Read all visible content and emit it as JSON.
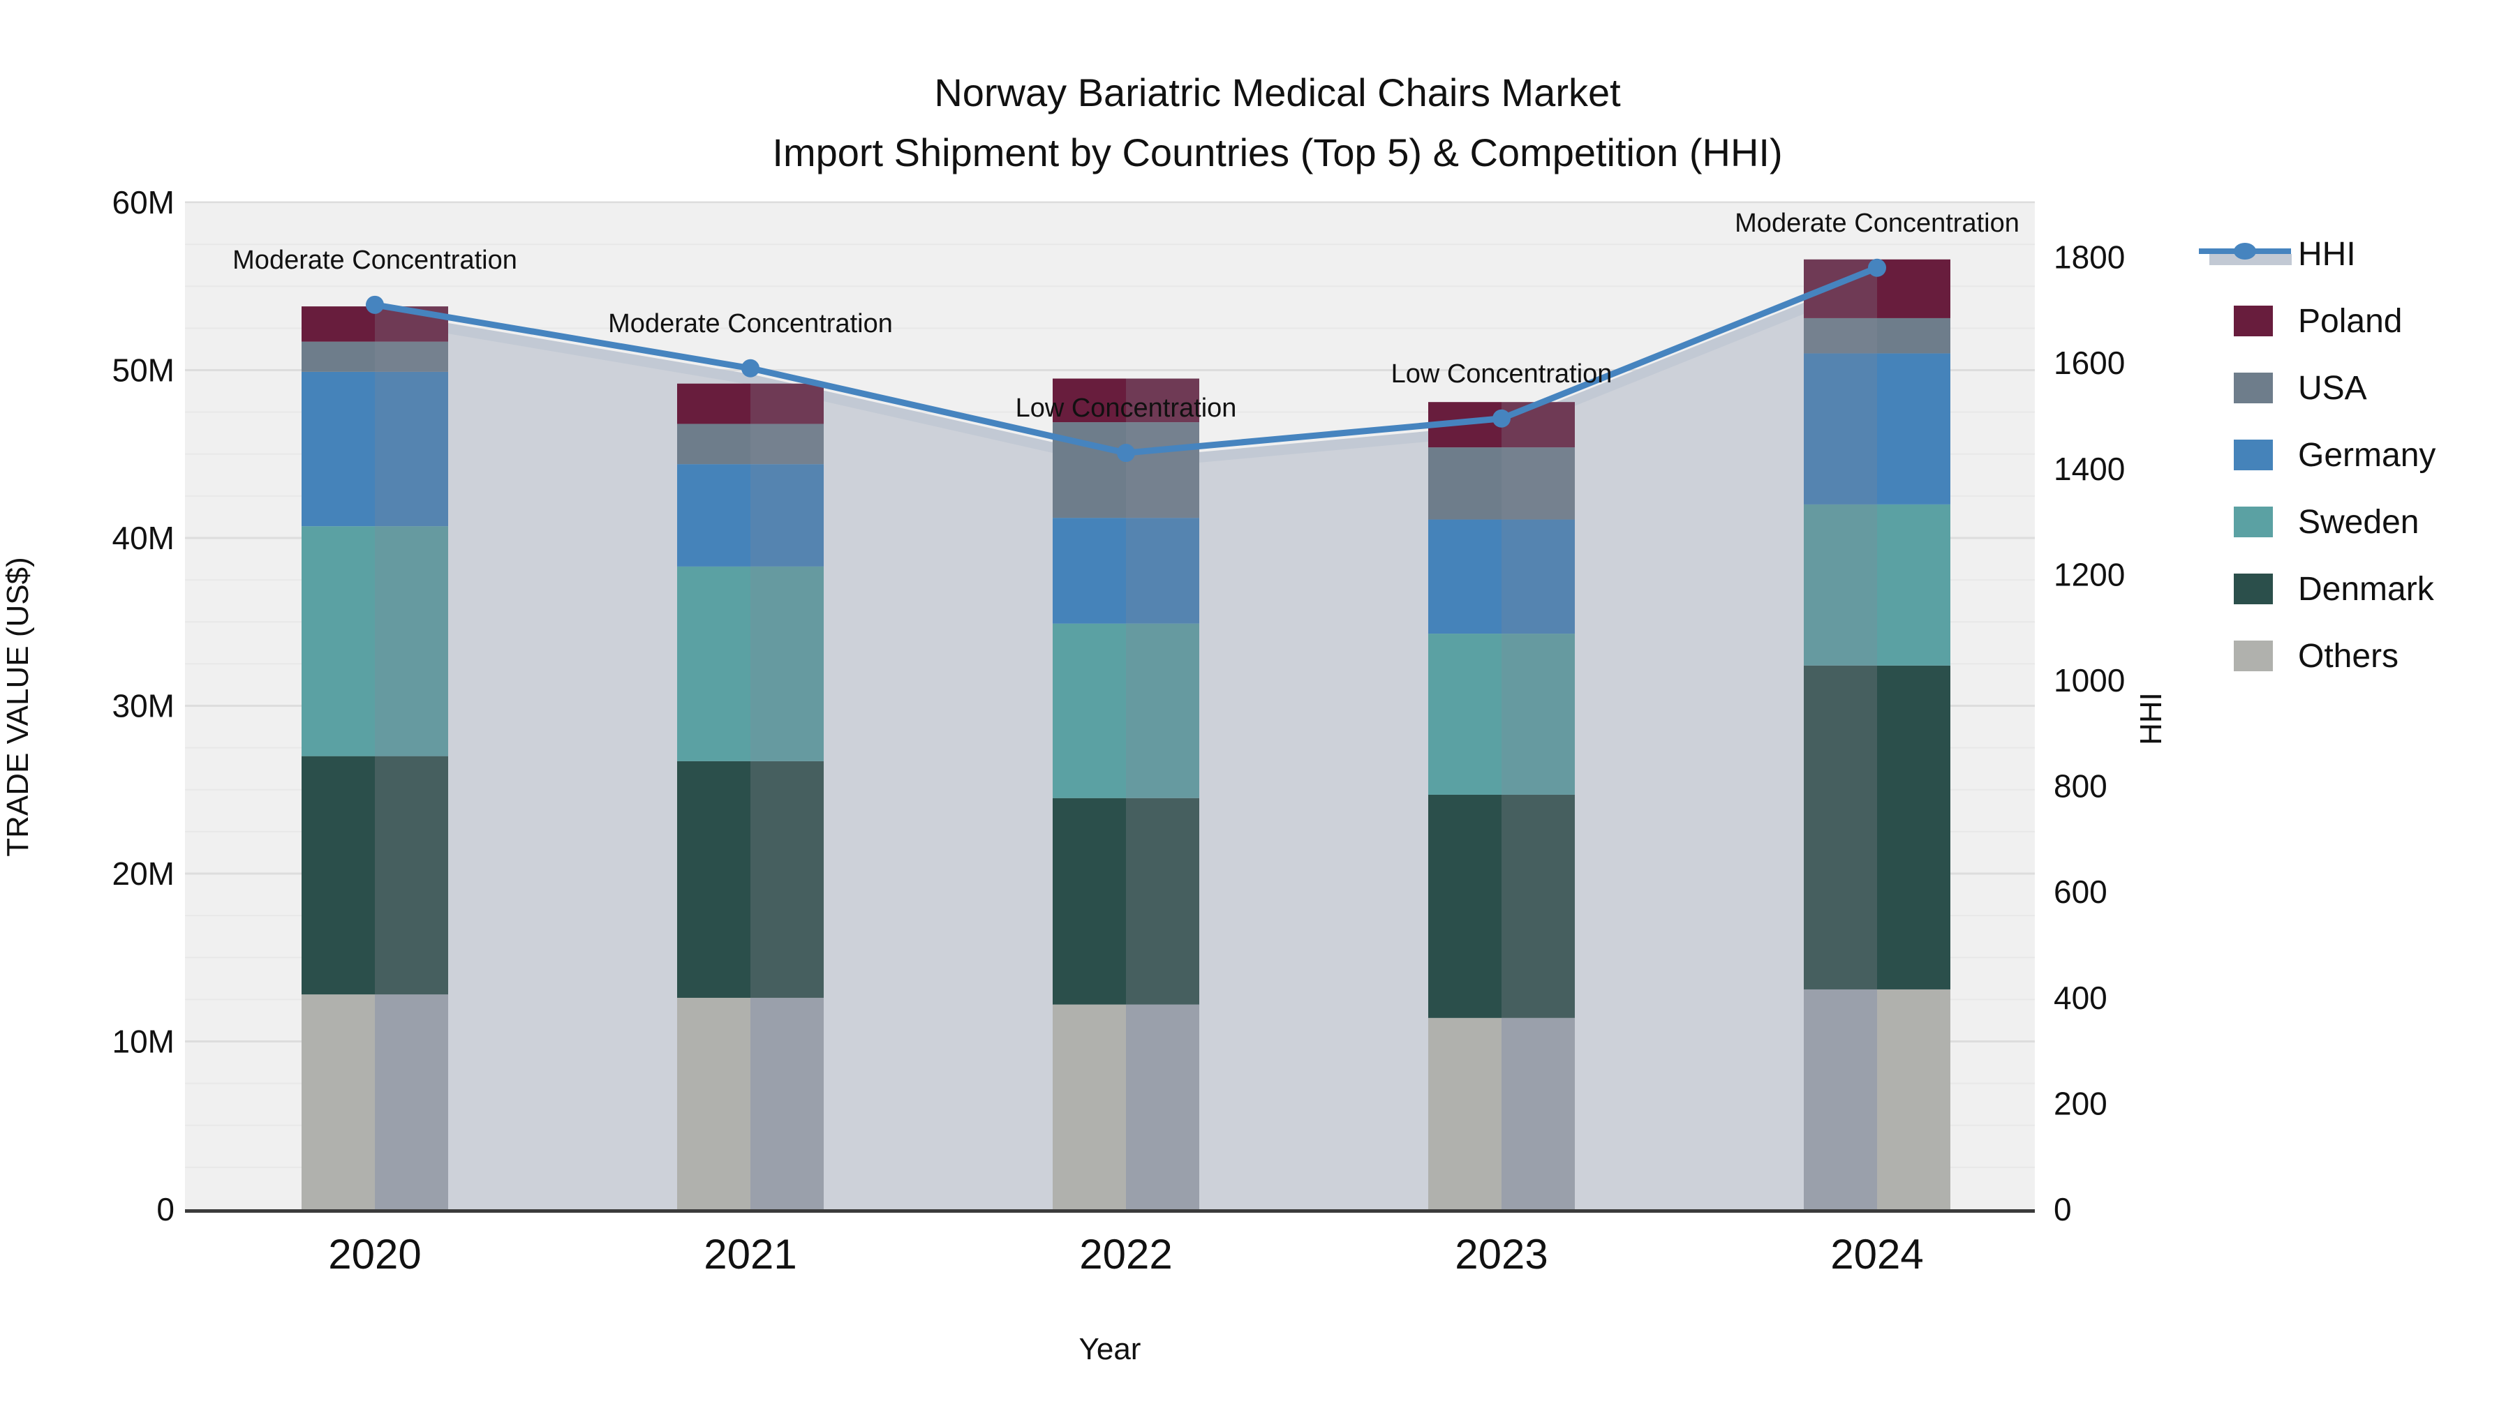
{
  "header": {
    "title_line1": "Norway Bariatric Medical Chairs Market",
    "title_line2": "Import Shipment by Countries (Top 5) & Competition (HHI)"
  },
  "axes": {
    "left_title": "TRADE VALUE (US$)",
    "left_ticks": [
      {
        "v": 0,
        "label": "0"
      },
      {
        "v": 10,
        "label": "10M"
      },
      {
        "v": 20,
        "label": "20M"
      },
      {
        "v": 30,
        "label": "30M"
      },
      {
        "v": 40,
        "label": "40M"
      },
      {
        "v": 50,
        "label": "50M"
      },
      {
        "v": 60,
        "label": "60M"
      }
    ],
    "right_title": "HHI",
    "right_ticks": [
      {
        "v": 0,
        "label": "0"
      },
      {
        "v": 200,
        "label": "200"
      },
      {
        "v": 400,
        "label": "400"
      },
      {
        "v": 600,
        "label": "600"
      },
      {
        "v": 800,
        "label": "800"
      },
      {
        "v": 1000,
        "label": "1000"
      },
      {
        "v": 1200,
        "label": "1200"
      },
      {
        "v": 1400,
        "label": "1400"
      },
      {
        "v": 1600,
        "label": "1600"
      },
      {
        "v": 1800,
        "label": "1800"
      }
    ],
    "x_title": "Year"
  },
  "legend": {
    "items": [
      "HHI",
      "Poland",
      "USA",
      "Germany",
      "Sweden",
      "Denmark",
      "Others"
    ]
  },
  "colors": {
    "plot_bg": "#f0f0f0",
    "grid_minor": "#e8e8e8",
    "grid_major": "#dddddd",
    "axis_line": "#3b3b3b",
    "text": "#111111",
    "hhi_line": "#4684bf",
    "hhi_shadow": "#c2c9d4",
    "hhi_area": "#cdd1d9"
  },
  "chart_data": {
    "type": "bar+line",
    "title": "Norway Bariatric Medical Chairs Market — Import Shipment by Countries (Top 5) & Competition (HHI)",
    "categories": [
      "2020",
      "2021",
      "2022",
      "2023",
      "2024"
    ],
    "value_unit": "M US$ (trade value, left axis)",
    "stack_note": "bars stacked bottom-to-top: Others, Denmark, Sweden, Germany, USA, Poland",
    "series": [
      {
        "name": "Poland",
        "color": "#681d3d",
        "muted": "#6f3a55",
        "values": [
          2.1,
          2.4,
          2.6,
          2.7,
          3.5
        ]
      },
      {
        "name": "USA",
        "color": "#6e7d8b",
        "muted": "#75818f",
        "values": [
          1.8,
          2.4,
          5.7,
          4.3,
          2.1
        ]
      },
      {
        "name": "Germany",
        "color": "#4583ba",
        "muted": "#5584b0",
        "values": [
          9.2,
          6.1,
          6.3,
          6.8,
          9.0
        ]
      },
      {
        "name": "Sweden",
        "color": "#5ba1a3",
        "muted": "#669aa0",
        "values": [
          13.7,
          11.6,
          10.4,
          9.6,
          9.6
        ]
      },
      {
        "name": "Denmark",
        "color": "#2b4f4b",
        "muted": "#465f5f",
        "values": [
          14.2,
          14.1,
          12.3,
          13.3,
          19.3
        ]
      },
      {
        "name": "Others",
        "color": "#b0b1ad",
        "muted": "#9aa0ab",
        "values": [
          12.8,
          12.6,
          12.2,
          11.4,
          13.1
        ]
      }
    ],
    "totals": [
      53.8,
      49.2,
      49.5,
      48.1,
      56.6
    ],
    "line": {
      "name": "HHI",
      "values": [
        1710,
        1590,
        1430,
        1495,
        1780
      ]
    },
    "annotations": [
      "Moderate Concentration",
      "Moderate Concentration",
      "Low Concentration",
      "Low Concentration",
      "Moderate Concentration"
    ],
    "xlabel": "Year",
    "ylabel_left": "TRADE VALUE (US$)",
    "ylabel_right": "HHI",
    "ylim_left": [
      0,
      60
    ],
    "ylim_right": [
      0,
      1800
    ],
    "grid": true,
    "legend_position": "right"
  }
}
